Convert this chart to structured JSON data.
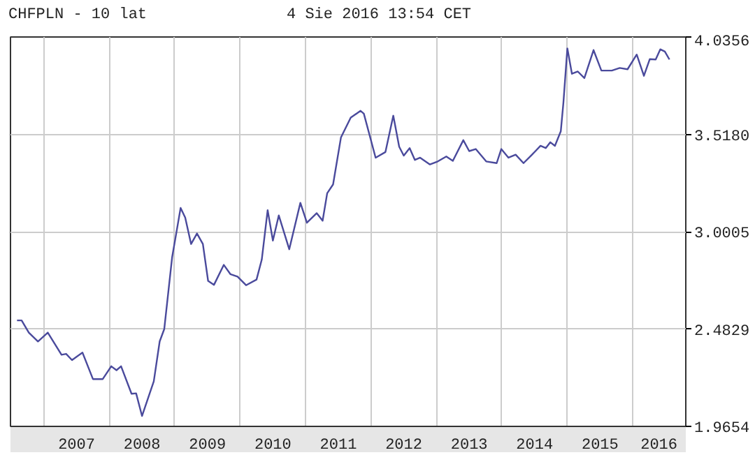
{
  "chart_data": {
    "type": "line",
    "title": "CHFPLN - 10 lat",
    "subtitle": "4 Sie 2016 13:54 CET",
    "x": [
      2006.59,
      2006.66,
      2006.77,
      2006.91,
      2007.06,
      2007.27,
      2007.34,
      2007.43,
      2007.59,
      2007.75,
      2007.9,
      2008.03,
      2008.11,
      2008.18,
      2008.34,
      2008.41,
      2008.5,
      2008.68,
      2008.77,
      2008.84,
      2008.96,
      2009.09,
      2009.16,
      2009.25,
      2009.34,
      2009.43,
      2009.51,
      2009.6,
      2009.75,
      2009.85,
      2009.96,
      2010.09,
      2010.25,
      2010.33,
      2010.42,
      2010.5,
      2010.59,
      2010.75,
      2010.92,
      2011.02,
      2011.17,
      2011.26,
      2011.33,
      2011.42,
      2011.54,
      2011.69,
      2011.84,
      2011.89,
      2012.07,
      2012.22,
      2012.34,
      2012.43,
      2012.5,
      2012.59,
      2012.67,
      2012.75,
      2012.9,
      2013.02,
      2013.15,
      2013.25,
      2013.41,
      2013.5,
      2013.6,
      2013.76,
      2013.92,
      2013.99,
      2014.1,
      2014.21,
      2014.33,
      2014.46,
      2014.59,
      2014.67,
      2014.74,
      2014.81,
      2014.9,
      2014.94,
      2015.0,
      2015.07,
      2015.16,
      2015.26,
      2015.4,
      2015.52,
      2015.68,
      2015.8,
      2015.92,
      2016.06,
      2016.17,
      2016.26,
      2016.35,
      2016.42,
      2016.49,
      2016.56
    ],
    "series": [
      {
        "color": "#4a4a9c",
        "values": [
          2.529,
          2.529,
          2.464,
          2.417,
          2.464,
          2.346,
          2.351,
          2.318,
          2.358,
          2.217,
          2.217,
          2.285,
          2.264,
          2.285,
          2.139,
          2.141,
          2.021,
          2.205,
          2.417,
          2.483,
          2.864,
          3.127,
          3.076,
          2.935,
          2.991,
          2.935,
          2.739,
          2.718,
          2.824,
          2.775,
          2.762,
          2.716,
          2.746,
          2.852,
          3.115,
          2.953,
          3.087,
          2.907,
          3.154,
          3.048,
          3.099,
          3.059,
          3.205,
          3.252,
          3.501,
          3.607,
          3.643,
          3.628,
          3.394,
          3.424,
          3.617,
          3.452,
          3.405,
          3.445,
          3.382,
          3.394,
          3.358,
          3.374,
          3.4,
          3.377,
          3.487,
          3.429,
          3.44,
          3.374,
          3.365,
          3.44,
          3.394,
          3.41,
          3.365,
          3.41,
          3.457,
          3.445,
          3.476,
          3.457,
          3.535,
          3.687,
          3.975,
          3.84,
          3.852,
          3.817,
          3.966,
          3.857,
          3.857,
          3.871,
          3.864,
          3.942,
          3.829,
          3.918,
          3.916,
          3.97,
          3.958,
          3.916
        ]
      }
    ],
    "xlim": [
      2006.49,
      2016.81
    ],
    "xticks": [
      {
        "value": 2007,
        "label": null
      },
      {
        "value": 2008,
        "label": null
      },
      {
        "value": 2009,
        "label": null
      },
      {
        "value": 2010,
        "label": null
      },
      {
        "value": 2011,
        "label": null
      },
      {
        "value": 2012,
        "label": null
      },
      {
        "value": 2013,
        "label": null
      },
      {
        "value": 2014,
        "label": null
      },
      {
        "value": 2015,
        "label": null
      },
      {
        "value": 2016,
        "label": null
      },
      {
        "value": 2007.5,
        "label": "2007"
      },
      {
        "value": 2008.5,
        "label": "2008"
      },
      {
        "value": 2009.5,
        "label": "2009"
      },
      {
        "value": 2010.5,
        "label": "2010"
      },
      {
        "value": 2011.5,
        "label": "2011"
      },
      {
        "value": 2012.5,
        "label": "2012"
      },
      {
        "value": 2013.5,
        "label": "2013"
      },
      {
        "value": 2014.5,
        "label": "2014"
      },
      {
        "value": 2015.5,
        "label": "2015"
      },
      {
        "value": 2016.4,
        "label": "2016"
      }
    ],
    "ylim": [
      1.9654,
      4.0356
    ],
    "yticks": [
      {
        "value": 1.9654,
        "label": "1.9654"
      },
      {
        "value": 2.4829,
        "label": "2.4829"
      },
      {
        "value": 3.0005,
        "label": "3.0005"
      },
      {
        "value": 3.518,
        "label": "3.5180"
      },
      {
        "value": 4.0356,
        "label": "4.0356"
      }
    ],
    "grid": true,
    "marker": "none",
    "line_style": "solid"
  }
}
